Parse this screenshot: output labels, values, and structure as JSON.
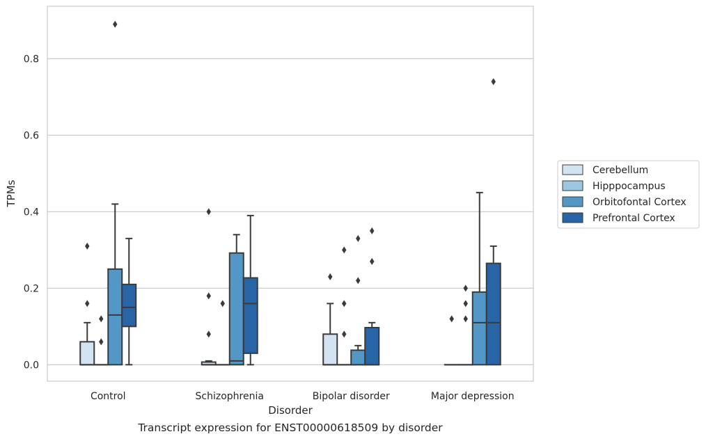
{
  "caption": "Transcript expression for ENST00000618509 by disorder",
  "chart_data": {
    "type": "box",
    "title": "",
    "xlabel": "Disorder",
    "ylabel": "TPMs",
    "ylim": [
      -0.043,
      0.937
    ],
    "yticks": [
      0.0,
      0.2,
      0.4,
      0.6,
      0.8
    ],
    "ytick_labels": [
      "0.0",
      "0.2",
      "0.4",
      "0.6",
      "0.8"
    ],
    "grid": "horizontal",
    "legend_position": "right",
    "categories": [
      "Control",
      "Schizophrenia",
      "Bipolar disorder",
      "Major depression"
    ],
    "series": [
      {
        "name": "Cerebellum",
        "color": "#d3e3f2",
        "boxes": [
          {
            "q1": 0.0,
            "median": 0.0,
            "q3": 0.06,
            "whisker_low": 0.0,
            "whisker_high": 0.11,
            "outliers": [
              0.16,
              0.31
            ]
          },
          {
            "q1": 0.0,
            "median": 0.0,
            "q3": 0.007,
            "whisker_low": 0.0,
            "whisker_high": 0.01,
            "outliers": [
              0.08,
              0.18,
              0.4
            ]
          },
          {
            "q1": 0.0,
            "median": 0.0,
            "q3": 0.08,
            "whisker_low": 0.0,
            "whisker_high": 0.16,
            "outliers": [
              0.23
            ]
          },
          {
            "q1": 0.0,
            "median": 0.0,
            "q3": 0.0,
            "whisker_low": 0.0,
            "whisker_high": 0.0,
            "outliers": [
              0.12
            ]
          }
        ]
      },
      {
        "name": "Hipppocampus",
        "color": "#9dc6e0",
        "boxes": [
          {
            "q1": 0.0,
            "median": 0.0,
            "q3": 0.0,
            "whisker_low": 0.0,
            "whisker_high": 0.0,
            "outliers": [
              0.06,
              0.12
            ]
          },
          {
            "q1": 0.0,
            "median": 0.0,
            "q3": 0.0,
            "whisker_low": 0.0,
            "whisker_high": 0.0,
            "outliers": [
              0.16
            ]
          },
          {
            "q1": 0.0,
            "median": 0.0,
            "q3": 0.0,
            "whisker_low": 0.0,
            "whisker_high": 0.0,
            "outliers": [
              0.08,
              0.16,
              0.3
            ]
          },
          {
            "q1": 0.0,
            "median": 0.0,
            "q3": 0.0,
            "whisker_low": 0.0,
            "whisker_high": 0.0,
            "outliers": [
              0.12,
              0.16,
              0.2
            ]
          }
        ]
      },
      {
        "name": "Orbitofontal Cortex",
        "color": "#5397c7",
        "boxes": [
          {
            "q1": 0.0,
            "median": 0.13,
            "q3": 0.25,
            "whisker_low": 0.0,
            "whisker_high": 0.42,
            "outliers": [
              0.89
            ]
          },
          {
            "q1": 0.0,
            "median": 0.01,
            "q3": 0.292,
            "whisker_low": 0.0,
            "whisker_high": 0.34,
            "outliers": []
          },
          {
            "q1": 0.0,
            "median": 0.0,
            "q3": 0.038,
            "whisker_low": 0.0,
            "whisker_high": 0.05,
            "outliers": [
              0.22,
              0.33
            ]
          },
          {
            "q1": 0.0,
            "median": 0.11,
            "q3": 0.19,
            "whisker_low": 0.0,
            "whisker_high": 0.45,
            "outliers": []
          }
        ]
      },
      {
        "name": "Prefrontal Cortex",
        "color": "#2865a7",
        "boxes": [
          {
            "q1": 0.1,
            "median": 0.15,
            "q3": 0.21,
            "whisker_low": 0.0,
            "whisker_high": 0.33,
            "outliers": []
          },
          {
            "q1": 0.03,
            "median": 0.16,
            "q3": 0.227,
            "whisker_low": 0.0,
            "whisker_high": 0.39,
            "outliers": []
          },
          {
            "q1": 0.0,
            "median": 0.0,
            "q3": 0.097,
            "whisker_low": 0.0,
            "whisker_high": 0.11,
            "outliers": [
              0.27,
              0.35
            ]
          },
          {
            "q1": 0.0,
            "median": 0.11,
            "q3": 0.265,
            "whisker_low": 0.0,
            "whisker_high": 0.31,
            "outliers": [
              0.74
            ]
          }
        ]
      }
    ]
  }
}
